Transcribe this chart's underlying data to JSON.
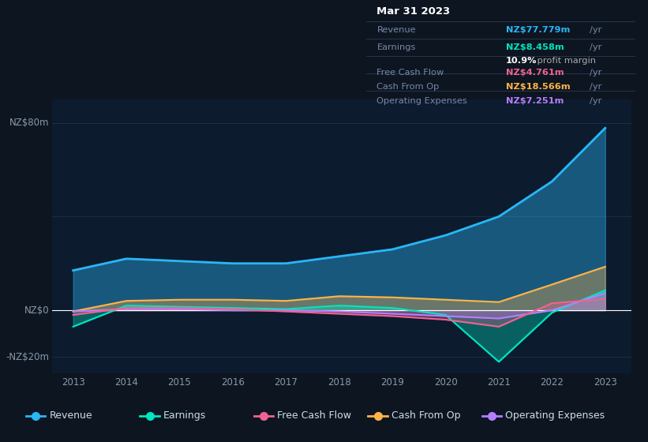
{
  "bg_color": "#0d1520",
  "plot_bg_color": "#0d1b2e",
  "years": [
    2013,
    2014,
    2015,
    2016,
    2017,
    2018,
    2019,
    2020,
    2021,
    2022,
    2023
  ],
  "revenue": [
    17,
    22,
    21,
    20,
    20,
    23,
    26,
    32,
    40,
    55,
    77.8
  ],
  "earnings": [
    -7,
    2,
    1.5,
    1,
    0.5,
    2,
    1,
    -2,
    -22,
    -1,
    8.5
  ],
  "free_cash_flow": [
    -2,
    1,
    1,
    0.5,
    -0.5,
    -1.5,
    -2.5,
    -4,
    -7,
    3,
    4.8
  ],
  "cash_from_op": [
    -0.5,
    4,
    4.5,
    4.5,
    4,
    6,
    5.5,
    4.5,
    3.5,
    11,
    18.6
  ],
  "operating_expenses": [
    -0.5,
    0.5,
    0.5,
    0,
    0,
    -0.5,
    -1.5,
    -2.5,
    -3.5,
    0,
    7.3
  ],
  "revenue_color": "#29b6f6",
  "earnings_color": "#00e5c0",
  "fcf_color": "#f06292",
  "cashop_color": "#ffb347",
  "opex_color": "#b47fff",
  "ylabel_80": "NZ$80m",
  "ylabel_0": "NZ$0",
  "ylabel_neg20": "-NZ$20m",
  "ylim_min": -27,
  "ylim_max": 90,
  "info_box": {
    "date": "Mar 31 2023",
    "revenue_val": "NZ$77.779m",
    "revenue_color": "#29b6f6",
    "earnings_val": "NZ$8.458m",
    "earnings_color": "#00e5c0",
    "margin_val": "10.9%",
    "fcf_val": "NZ$4.761m",
    "fcf_color": "#f06292",
    "cashop_val": "NZ$18.566m",
    "cashop_color": "#ffb347",
    "opex_val": "NZ$7.251m",
    "opex_color": "#b47fff"
  },
  "legend_items": [
    {
      "label": "Revenue",
      "color": "#29b6f6"
    },
    {
      "label": "Earnings",
      "color": "#00e5c0"
    },
    {
      "label": "Free Cash Flow",
      "color": "#f06292"
    },
    {
      "label": "Cash From Op",
      "color": "#ffb347"
    },
    {
      "label": "Operating Expenses",
      "color": "#b47fff"
    }
  ]
}
